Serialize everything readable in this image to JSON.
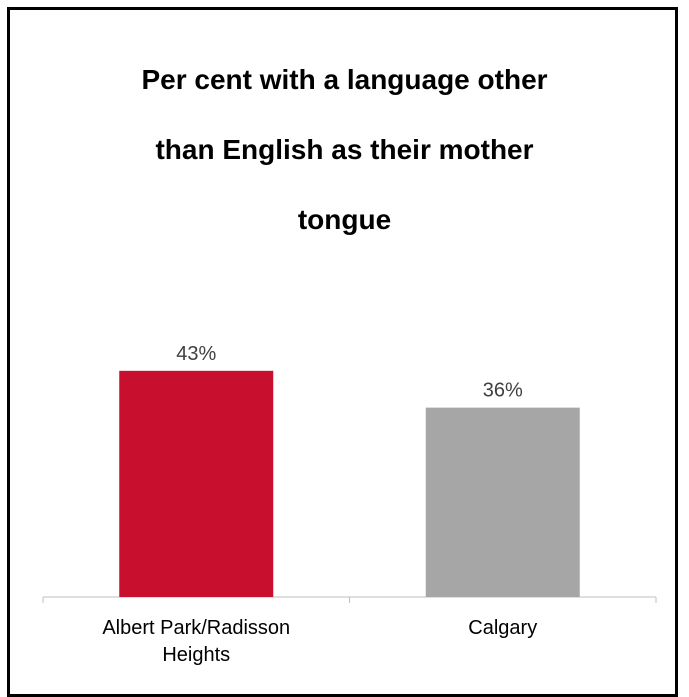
{
  "chart_data": {
    "type": "bar",
    "title": "Per cent with a language other than English as their mother tongue",
    "title_lines": [
      "Per cent with a language other",
      "than English as their mother",
      "tongue"
    ],
    "categories": [
      [
        "Albert Park/Radisson",
        "Heights"
      ],
      [
        "Calgary"
      ]
    ],
    "values": [
      43,
      36
    ],
    "data_labels": [
      "43%",
      "36%"
    ],
    "bar_colors": [
      "#c8102e",
      "#a6a6a6"
    ],
    "ylim": [
      0,
      50
    ],
    "grid": false,
    "legend": "none",
    "xlabel": "",
    "ylabel": ""
  }
}
